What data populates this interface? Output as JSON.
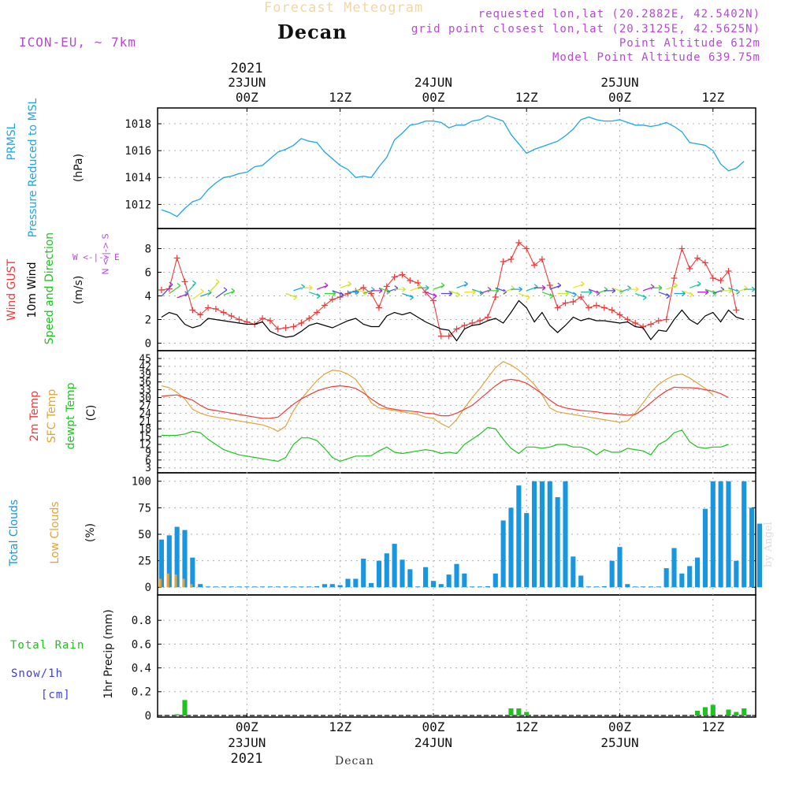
{
  "header": {
    "title": "Forecast Meteogram",
    "place": "Decan",
    "model": "ICON-EU, ~ 7km",
    "requested": "requested lon,lat (20.2882E, 42.5402N)",
    "gridpoint": "grid point closest lon,lat (20.3125E, 42.5625N)",
    "point_alt": "Point Altitude 612m",
    "model_alt": "Model Point Altitude 639.75m",
    "watermark": "by Angel",
    "bottom_place": "Decan"
  },
  "time_axis": {
    "top_year": "2021",
    "bottom_year": "2021",
    "ticks": [
      {
        "hour": 0,
        "time": "00Z",
        "date": "23JUN"
      },
      {
        "hour": 12,
        "time": "12Z",
        "date": ""
      },
      {
        "hour": 24,
        "time": "00Z",
        "date": "24JUN"
      },
      {
        "hour": 36,
        "time": "12Z",
        "date": ""
      },
      {
        "hour": 48,
        "time": "00Z",
        "date": "25JUN"
      },
      {
        "hour": 60,
        "time": "12Z",
        "date": ""
      }
    ],
    "start_hour": -11.5,
    "end_hour": 65.5
  },
  "panel_labels": {
    "pressure": {
      "line1": "PRMSL",
      "line2": "Pressure Reduced to MSL",
      "unit": "(hPa)"
    },
    "wind": {
      "gust": "Wind GUST",
      "wind10": "10m Wind",
      "dir": "Speed and Direction",
      "unit": "(m/s)",
      "compass_ns": "N <-|-> S",
      "compass_we": "W <-|-> E"
    },
    "temp": {
      "t2m": "2m Temp",
      "sfc": "SFC Temp",
      "dew": "dewpt Temp",
      "unit": "(C)"
    },
    "clouds": {
      "total": "Total Clouds",
      "low": "Low Clouds",
      "unit": "(%)"
    },
    "precip": {
      "rain": "Total  Rain",
      "snow": "Snow/1h",
      "snow_unit": "[cm]",
      "axis": "1hr Precip (mm)"
    }
  },
  "colors": {
    "pressure": "#1ea6e6",
    "gust": "#ee3b3b",
    "wind10": "#000000",
    "t2m": "#ee3b3b",
    "sfc": "#e0a43a",
    "dew": "#1fc21f",
    "total_cloud": "#1896e0",
    "low_cloud": "#e0a43a",
    "rain": "#1fc21f",
    "snow": "#3b3bee",
    "grid": "#b0b0b0"
  },
  "chart_data": [
    {
      "type": "line",
      "title": "PRMSL Pressure Reduced to MSL",
      "ylabel": "(hPa)",
      "ylim": [
        1010.5,
        1019.0
      ],
      "yticks": [
        1012,
        1014,
        1016,
        1018
      ],
      "hour_start": -11,
      "hour_step": 1,
      "values": [
        1011.6,
        1011.4,
        1011.1,
        1011.7,
        1012.2,
        1012.4,
        1013.1,
        1013.6,
        1014.0,
        1014.1,
        1014.3,
        1014.4,
        1014.8,
        1014.9,
        1015.4,
        1015.9,
        1016.1,
        1016.4,
        1016.9,
        1016.7,
        1016.6,
        1015.9,
        1015.4,
        1014.9,
        1014.6,
        1014.0,
        1014.1,
        1014.0,
        1014.8,
        1015.5,
        1016.8,
        1017.3,
        1017.9,
        1018.0,
        1018.2,
        1018.2,
        1018.1,
        1017.7,
        1017.9,
        1017.9,
        1018.2,
        1018.3,
        1018.6,
        1018.4,
        1018.2,
        1017.2,
        1016.5,
        1015.8,
        1016.1,
        1016.3,
        1016.5,
        1016.7,
        1017.1,
        1017.6,
        1018.3,
        1018.5,
        1018.3,
        1018.2,
        1018.2,
        1018.3,
        1018.1,
        1017.9,
        1017.9,
        1017.8,
        1017.9,
        1018.1,
        1017.8,
        1017.4,
        1016.6,
        1016.5,
        1016.4,
        1016.0,
        1015.0,
        1014.5,
        1014.7,
        1015.2
      ]
    },
    {
      "type": "line",
      "title": "Wind GUST / 10m Wind Speed and Direction",
      "ylabel": "(m/s)",
      "ylim": [
        -0.3,
        9.3
      ],
      "yticks": [
        0,
        2,
        4,
        6,
        8
      ],
      "hour_start": -11,
      "hour_step": 1,
      "series": [
        {
          "name": "Wind GUST",
          "values": [
            4.5,
            4.6,
            7.2,
            5.2,
            2.8,
            2.4,
            3.0,
            2.9,
            2.6,
            2.3,
            2.0,
            1.8,
            1.6,
            2.1,
            1.9,
            1.2,
            1.3,
            1.4,
            1.7,
            2.1,
            2.6,
            3.2,
            3.7,
            3.9,
            4.2,
            4.4,
            4.7,
            4.2,
            3.0,
            4.8,
            5.6,
            5.8,
            5.3,
            5.1,
            4.3,
            3.6,
            0.6,
            0.6,
            1.2,
            1.5,
            1.7,
            1.9,
            2.2,
            3.9,
            6.9,
            7.1,
            8.5,
            8.0,
            6.6,
            7.1,
            4.9,
            3.0,
            3.4,
            3.5,
            3.9,
            3.0,
            3.2,
            3.0,
            2.8,
            2.4,
            2.0,
            1.7,
            1.4,
            1.6,
            1.9,
            2.0,
            5.5,
            8.0,
            6.3,
            7.2,
            6.8,
            5.5,
            5.3,
            6.1,
            2.8
          ]
        },
        {
          "name": "10m Wind",
          "values": [
            2.2,
            2.6,
            2.4,
            1.6,
            1.3,
            1.5,
            2.1,
            2.0,
            1.9,
            1.8,
            1.7,
            1.6,
            1.6,
            1.8,
            1.0,
            0.7,
            0.5,
            0.6,
            1.0,
            1.5,
            1.7,
            1.5,
            1.3,
            1.6,
            1.9,
            2.1,
            1.6,
            1.4,
            1.4,
            2.3,
            2.6,
            2.4,
            2.6,
            2.2,
            1.8,
            1.5,
            1.2,
            1.1,
            0.2,
            1.2,
            1.5,
            1.6,
            1.9,
            2.1,
            1.7,
            2.6,
            3.6,
            3.0,
            1.8,
            2.6,
            1.5,
            0.9,
            1.5,
            2.2,
            1.9,
            2.1,
            1.9,
            1.9,
            1.8,
            1.7,
            1.8,
            1.4,
            1.3,
            0.3,
            1.1,
            1.0,
            2.0,
            2.8,
            2.0,
            1.6,
            2.3,
            2.6,
            1.8,
            2.8,
            2.2,
            2.0
          ]
        }
      ]
    },
    {
      "type": "line",
      "title": "2m Temp / SFC Temp / dewpt Temp",
      "ylabel": "(C)",
      "ylim": [
        2,
        46.5
      ],
      "yticks": [
        3,
        6,
        9,
        12,
        15,
        18,
        21,
        24,
        27,
        30,
        33,
        36,
        39,
        42,
        45
      ],
      "hour_start": -11,
      "hour_step": 1,
      "series": [
        {
          "name": "2m Temp",
          "values": [
            30.5,
            30.8,
            31.0,
            30.0,
            29.0,
            27.0,
            25.5,
            25.0,
            24.5,
            24.0,
            23.5,
            23.0,
            22.5,
            22.0,
            22.0,
            22.5,
            25.0,
            27.5,
            29.5,
            31.0,
            32.5,
            33.5,
            34.2,
            34.5,
            34.2,
            33.5,
            31.8,
            29.5,
            27.5,
            26.0,
            25.5,
            25.0,
            24.8,
            24.5,
            24.0,
            23.8,
            23.0,
            23.0,
            24.0,
            25.5,
            27.0,
            29.5,
            32.0,
            34.5,
            36.5,
            37.0,
            36.5,
            35.5,
            33.5,
            31.5,
            29.0,
            27.0,
            26.0,
            25.5,
            25.0,
            24.8,
            24.5,
            24.0,
            23.8,
            23.5,
            23.2,
            23.5,
            25.5,
            28.0,
            30.5,
            32.5,
            34.0,
            33.8,
            33.8,
            33.6,
            33.0,
            32.5,
            31.5,
            30.0
          ]
        },
        {
          "name": "SFC Temp",
          "values": [
            34.5,
            33.8,
            32.0,
            29.5,
            25.5,
            24.0,
            23.0,
            22.5,
            22.0,
            21.5,
            21.0,
            20.5,
            20.0,
            19.5,
            18.5,
            17.0,
            19.0,
            25.0,
            29.5,
            33.0,
            36.5,
            39.0,
            40.5,
            40.2,
            39.0,
            37.0,
            33.0,
            28.0,
            26.0,
            25.5,
            25.0,
            24.5,
            24.0,
            23.5,
            22.5,
            22.0,
            20.0,
            18.5,
            21.5,
            26.0,
            30.0,
            33.5,
            37.5,
            41.5,
            43.8,
            42.5,
            40.5,
            38.0,
            35.0,
            31.0,
            26.0,
            24.5,
            24.0,
            23.5,
            23.0,
            22.5,
            22.0,
            21.5,
            21.0,
            20.5,
            21.0,
            24.0,
            28.0,
            32.0,
            35.0,
            37.0,
            38.5,
            39.0,
            37.5,
            35.5,
            33.5,
            31.0
          ]
        },
        {
          "name": "dewpt Temp",
          "values": [
            15.5,
            15.4,
            15.5,
            16.0,
            17.0,
            16.5,
            14.0,
            12.0,
            10.0,
            9.0,
            8.0,
            7.5,
            7.0,
            6.5,
            6.0,
            5.5,
            7.0,
            12.0,
            14.5,
            14.5,
            13.5,
            10.5,
            7.0,
            5.5,
            6.5,
            7.5,
            7.5,
            7.7,
            9.5,
            11.0,
            9.0,
            8.5,
            9.0,
            9.5,
            10.0,
            9.5,
            8.5,
            9.0,
            8.5,
            12.0,
            14.0,
            16.0,
            18.5,
            18.0,
            14.0,
            10.5,
            8.5,
            11.0,
            11.0,
            10.5,
            11.0,
            12.0,
            12.0,
            11.0,
            11.0,
            10.0,
            8.0,
            10.0,
            9.0,
            9.0,
            10.5,
            10.0,
            9.5,
            8.0,
            12.0,
            13.5,
            16.5,
            17.5,
            13.0,
            11.0,
            10.5,
            11.0,
            11.0,
            12.0
          ]
        }
      ]
    },
    {
      "type": "bar",
      "title": "Total Clouds / Low Clouds",
      "ylabel": "(%)",
      "ylim": [
        -5,
        105
      ],
      "yticks": [
        0,
        25,
        50,
        75,
        100
      ],
      "hour_start": -11,
      "hour_step": 1,
      "series": [
        {
          "name": "Total Clouds",
          "values": [
            45,
            49,
            57,
            54,
            28,
            3,
            0,
            0,
            0,
            0,
            0,
            0,
            0,
            0,
            0,
            0,
            0,
            0,
            0,
            0,
            1,
            3,
            3,
            2,
            8,
            8,
            27,
            4,
            25,
            32,
            41,
            26,
            17,
            0,
            19,
            6,
            3,
            12,
            22,
            13,
            0,
            0,
            1,
            13,
            63,
            75,
            96,
            70,
            100,
            100,
            100,
            85,
            100,
            29,
            11,
            0,
            0,
            1,
            25,
            38,
            3,
            0,
            0,
            0,
            0,
            18,
            37,
            13,
            20,
            28,
            74,
            100,
            100,
            100,
            25,
            100,
            75,
            60
          ]
        },
        {
          "name": "Low Clouds",
          "values": [
            8,
            13,
            12,
            8,
            3,
            0,
            0,
            0,
            0,
            0,
            0,
            0,
            0,
            0,
            0,
            0,
            0,
            0,
            0,
            0,
            0,
            0,
            0,
            0,
            0,
            0,
            0,
            0,
            0,
            0,
            0,
            0,
            0,
            0,
            0,
            0,
            0,
            0,
            0,
            0,
            0,
            0,
            0,
            0,
            0,
            0,
            0,
            0,
            0,
            0,
            0,
            0,
            0,
            0,
            0,
            0,
            0,
            0,
            0,
            0,
            0,
            0,
            0,
            0,
            0,
            0,
            0,
            0,
            0,
            0,
            0,
            0,
            0,
            0,
            0,
            0,
            0,
            0
          ]
        }
      ]
    },
    {
      "type": "bar",
      "title": "1hr Precip (mm)",
      "ylabel": "1hr Precip (mm)",
      "ylim": [
        0,
        0.98
      ],
      "yticks": [
        0,
        0.2,
        0.4,
        0.6,
        0.8
      ],
      "ytick_labels": [
        "0",
        "0.2",
        "0.4",
        "0.6",
        "0.8"
      ],
      "hour_start": -11,
      "hour_step": 1,
      "series": [
        {
          "name": "Total Rain",
          "values": [
            0,
            0,
            0.01,
            0.13,
            0,
            0,
            0,
            0,
            0,
            0,
            0,
            0,
            0,
            0,
            0,
            0,
            0,
            0,
            0,
            0,
            0,
            0,
            0,
            0,
            0,
            0,
            0,
            0,
            0,
            0,
            0,
            0,
            0,
            0,
            0,
            0,
            0,
            0,
            0,
            0,
            0,
            0,
            0,
            0,
            0,
            0.06,
            0.06,
            0.03,
            0,
            0,
            0,
            0,
            0,
            0,
            0,
            0,
            0,
            0,
            0,
            0,
            0,
            0,
            0,
            0,
            0,
            0,
            0,
            0,
            0,
            0.04,
            0.07,
            0.09,
            0,
            0.05,
            0.03,
            0.06
          ]
        },
        {
          "name": "Snow/1h",
          "values": []
        }
      ]
    }
  ]
}
